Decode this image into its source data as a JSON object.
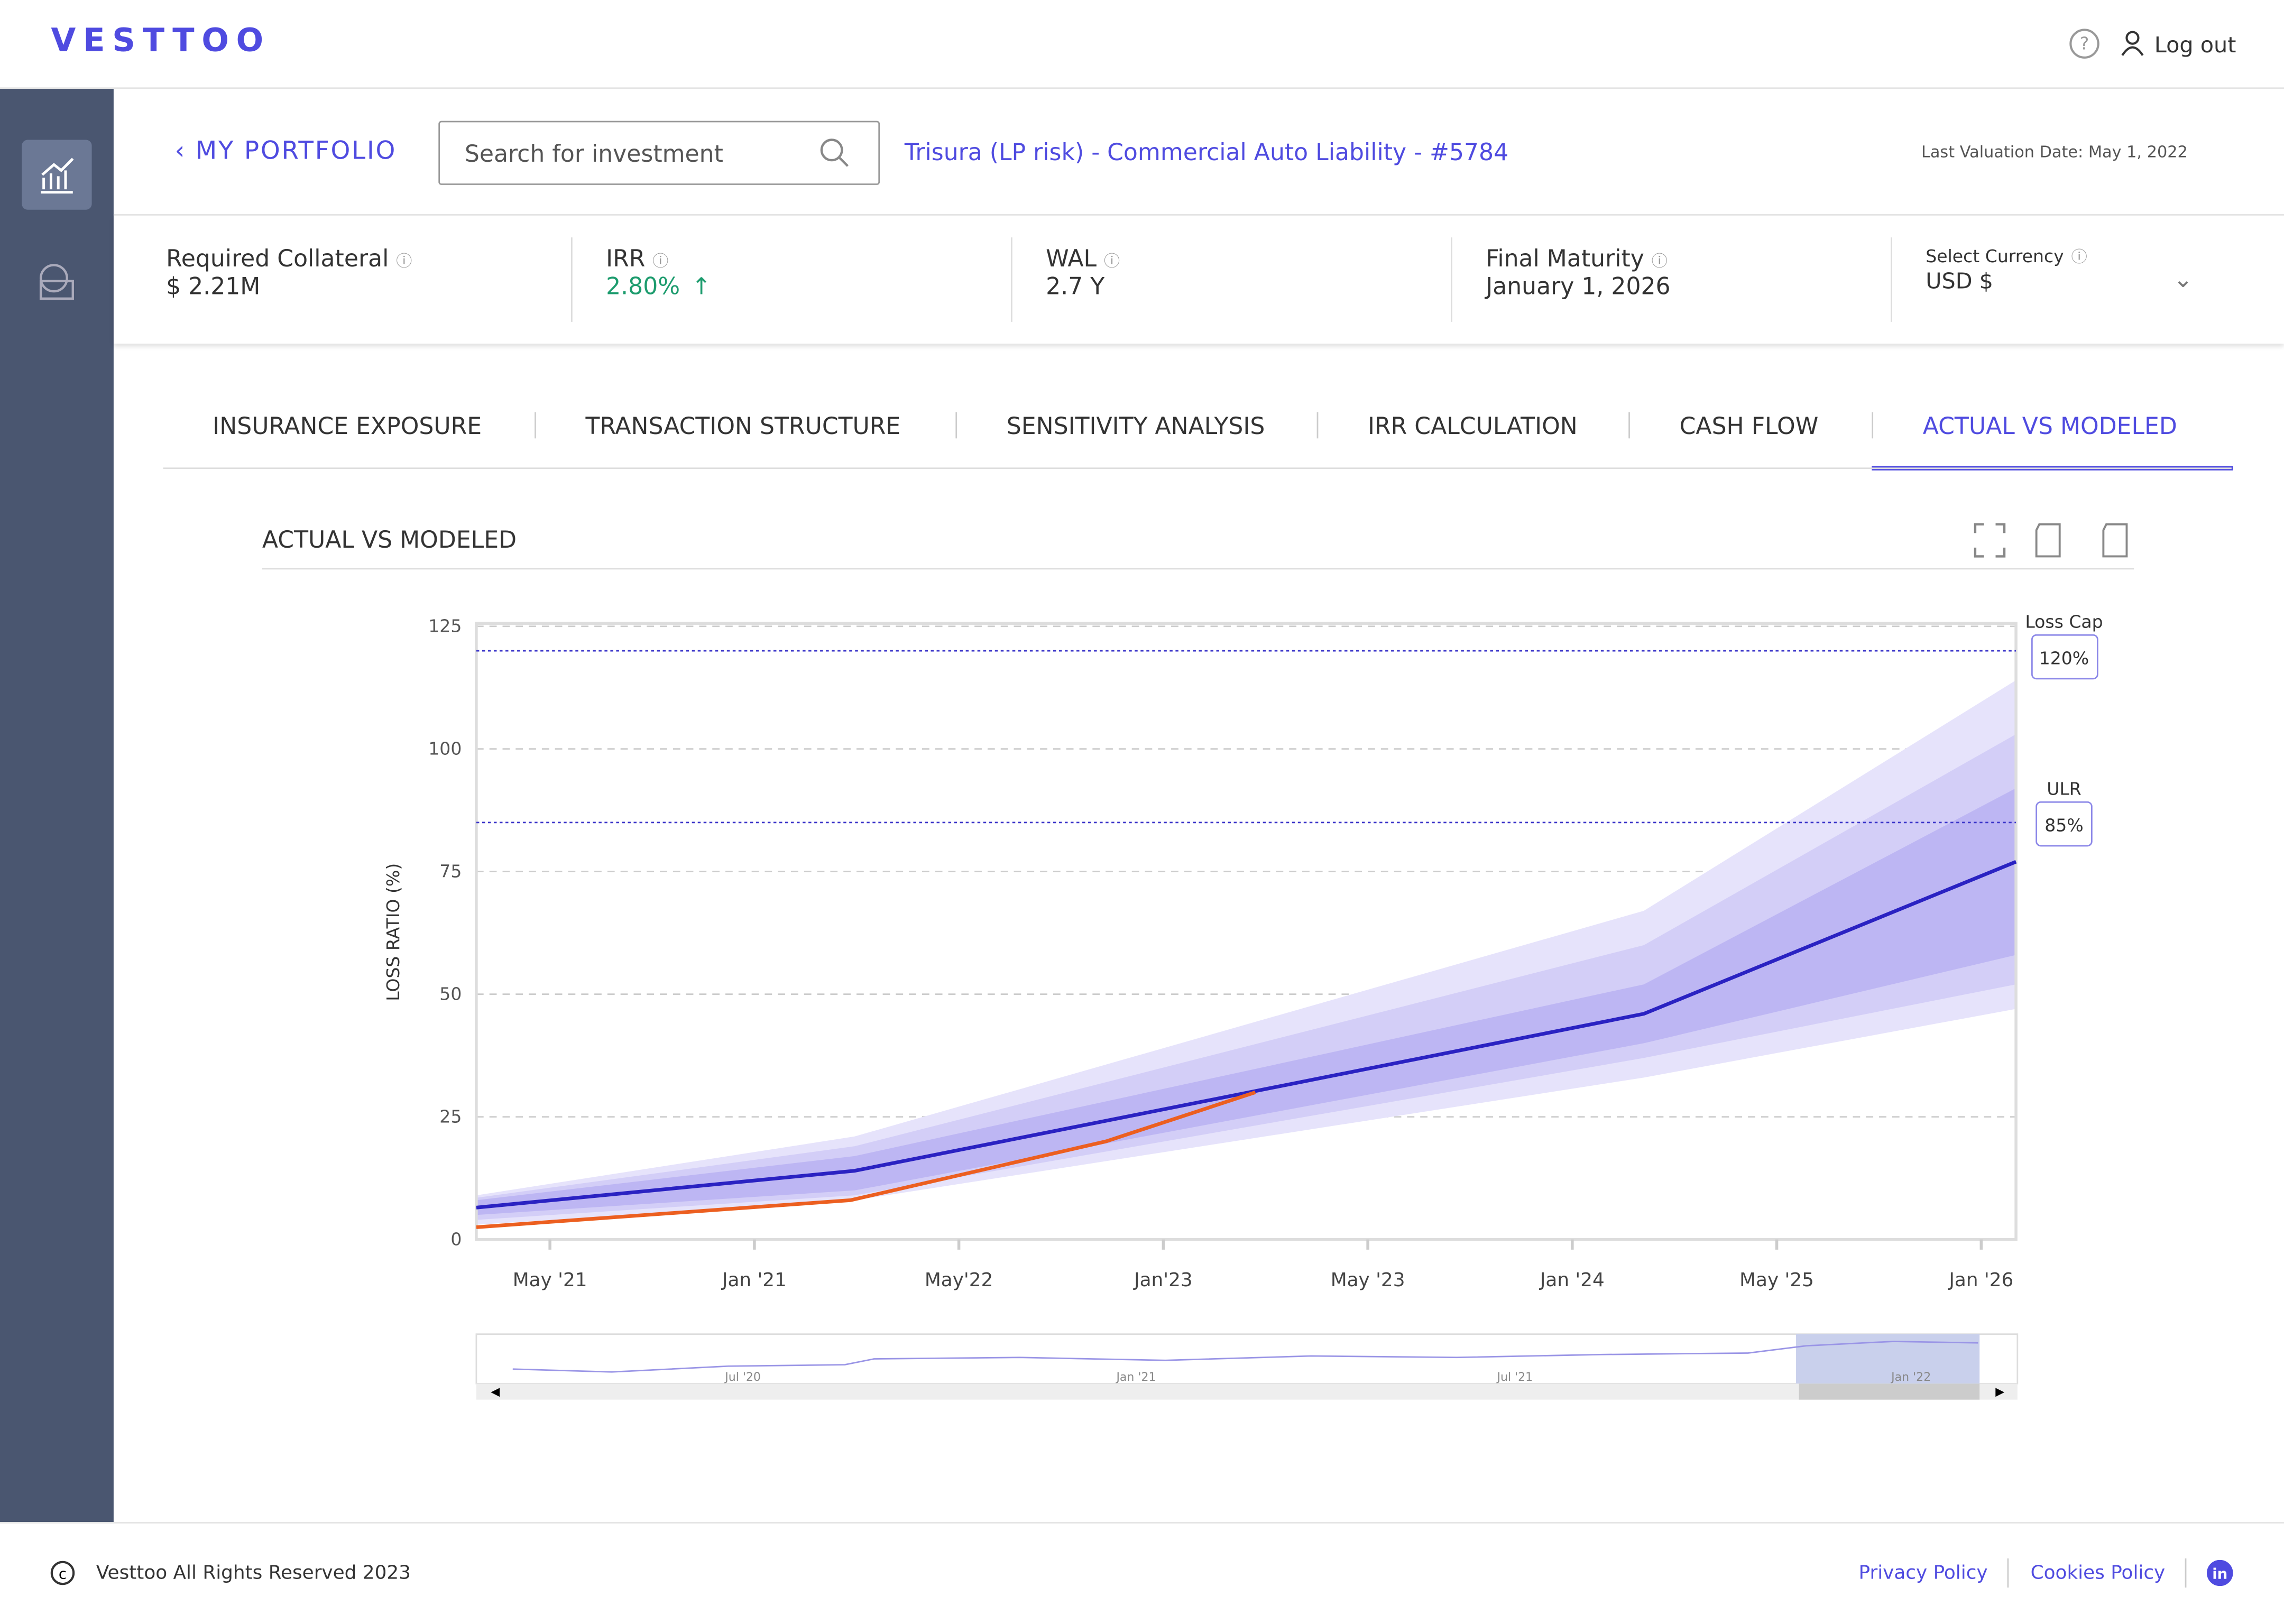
{
  "header": {
    "logo": "VESTTOO",
    "logout": "Log out"
  },
  "nav": {
    "back": "MY PORTFOLIO",
    "search_placeholder": "Search for investment",
    "investment": "Trisura (LP risk) - Commercial Auto Liability - #5784",
    "last_valuation": "Last Valuation Date: May 1, 2022"
  },
  "metrics": [
    {
      "label": "Required Collateral",
      "value": "$ 2.21M"
    },
    {
      "label": "IRR",
      "value": "2.80%"
    },
    {
      "label": "WAL",
      "value": "2.7 Y"
    },
    {
      "label": "Final Maturity",
      "value": "January 1, 2026"
    },
    {
      "label": "Select Currency",
      "value": "USD $"
    }
  ],
  "tabs": [
    "INSURANCE EXPOSURE",
    "TRANSACTION STRUCTURE",
    "SENSITIVITY ANALYSIS",
    "IRR CALCULATION",
    "CASH FLOW",
    "ACTUAL VS MODELED"
  ],
  "active_tab": 5,
  "panel_title": "ACTUAL VS MODELED",
  "chart_data": {
    "type": "line",
    "y_label": "LOSS RATIO (%)",
    "xlim": [
      -0.36,
      7.17
    ],
    "xticks": [
      {
        "value": 0,
        "label": "May '21"
      },
      {
        "value": 1,
        "label": "Jan '21"
      },
      {
        "value": 2,
        "label": "May'22"
      },
      {
        "value": 3,
        "label": "Jan'23"
      },
      {
        "value": 4,
        "label": "May '23"
      },
      {
        "value": 5,
        "label": "Jan '24"
      },
      {
        "value": 6,
        "label": "May '25"
      },
      {
        "value": 7,
        "label": "Jan '26"
      }
    ],
    "ylim": [
      0,
      125
    ],
    "yticks": [
      0,
      25,
      50,
      75,
      100,
      125
    ],
    "grid": true,
    "x": [
      -0.36,
      1.49,
      5.35,
      7.17
    ],
    "bands": [
      {
        "color": "#e6e3fb",
        "low": [
          3,
          8,
          33,
          47
        ],
        "high": [
          9,
          21,
          67,
          114
        ]
      },
      {
        "color": "#d3cef7",
        "low": [
          4,
          9,
          37,
          52
        ],
        "high": [
          8.5,
          19,
          60,
          103
        ]
      },
      {
        "color": "#bdb6f3",
        "low": [
          5,
          10,
          40,
          58
        ],
        "high": [
          8,
          17,
          52,
          92
        ]
      }
    ],
    "series": [
      {
        "color": "#2a22c2",
        "x": [
          -0.36,
          1.49,
          5.35,
          7.17
        ],
        "values": [
          6.5,
          14,
          46,
          77
        ]
      },
      {
        "color": "#ec5f20",
        "x": [
          -0.36,
          1.47,
          2.72,
          3.45
        ],
        "values": [
          2.5,
          8,
          20,
          30
        ]
      }
    ],
    "reference_lines": [
      {
        "title": "Loss Cap",
        "value": 120,
        "label": "120%"
      },
      {
        "title": "ULR",
        "value": 85,
        "label": "85%"
      }
    ],
    "navigator_labels": [
      "Jul '20",
      "Jan '21",
      "Jul '21",
      "Jan '22"
    ]
  },
  "footer": {
    "copyright": "Vesttoo All Rights Reserved 2023",
    "links": [
      "Privacy Policy",
      "Cookies Policy"
    ]
  }
}
